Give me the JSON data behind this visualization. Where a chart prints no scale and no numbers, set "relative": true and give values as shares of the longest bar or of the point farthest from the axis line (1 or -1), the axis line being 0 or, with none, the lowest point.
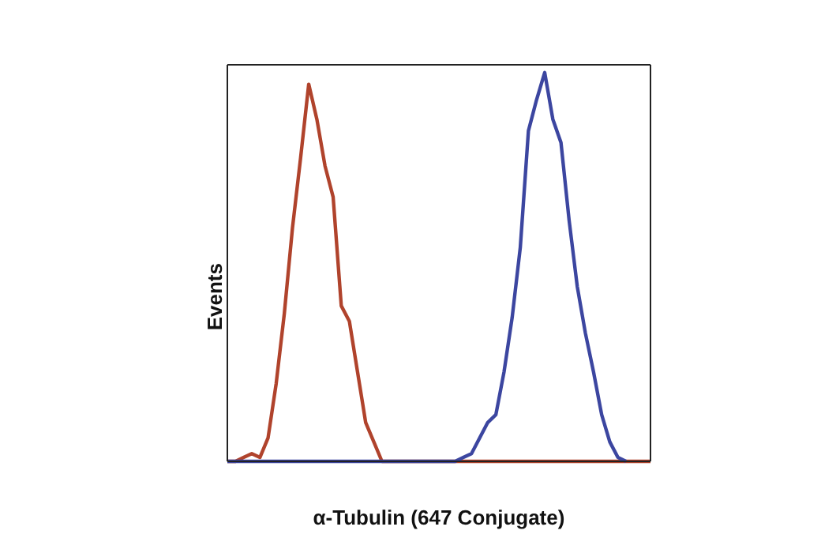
{
  "chart_data": {
    "type": "line",
    "relative": true,
    "xlabel": "α-Tubulin (647 Conjugate)",
    "ylabel": "Events",
    "marker": "none",
    "line_style": "solid",
    "categories": [
      null,
      null,
      null,
      null,
      null,
      null,
      null,
      null,
      null,
      null,
      null,
      null,
      null,
      null,
      null,
      null,
      null,
      null,
      null,
      null,
      null,
      null,
      null,
      null,
      null,
      null,
      null,
      null,
      null,
      null,
      null,
      null,
      null,
      null,
      null,
      null,
      null,
      null,
      null,
      null,
      null,
      null,
      null,
      null,
      null,
      null,
      null,
      null,
      null,
      null,
      null,
      null,
      null
    ],
    "series": [
      {
        "color": "#b0432c",
        "values": [
          0,
          0,
          0.01,
          0.02,
          0.01,
          0.06,
          0.2,
          0.38,
          0.6,
          0.78,
          0.97,
          0.88,
          0.76,
          0.68,
          0.4,
          0.36,
          0.23,
          0.1,
          0.05,
          0,
          0,
          0,
          0,
          0,
          0,
          0,
          0,
          0,
          0,
          0,
          0,
          0,
          0,
          0,
          0,
          0,
          0,
          0,
          0,
          0,
          0,
          0,
          0,
          0,
          0,
          0,
          0,
          0,
          0,
          0,
          0,
          0,
          0
        ]
      },
      {
        "color": "#3c46a0",
        "values": [
          0,
          0,
          0,
          0,
          0,
          0,
          0,
          0,
          0,
          0,
          0,
          0,
          0,
          0,
          0,
          0,
          0,
          0,
          0,
          0,
          0,
          0,
          0,
          0,
          0,
          0,
          0,
          0,
          0,
          0.01,
          0.02,
          0.06,
          0.1,
          0.12,
          0.23,
          0.37,
          0.55,
          0.85,
          0.93,
          1,
          0.88,
          0.82,
          0.62,
          0.45,
          0.33,
          0.23,
          0.12,
          0.05,
          0.01,
          0,
          null,
          null,
          null
        ]
      }
    ]
  }
}
